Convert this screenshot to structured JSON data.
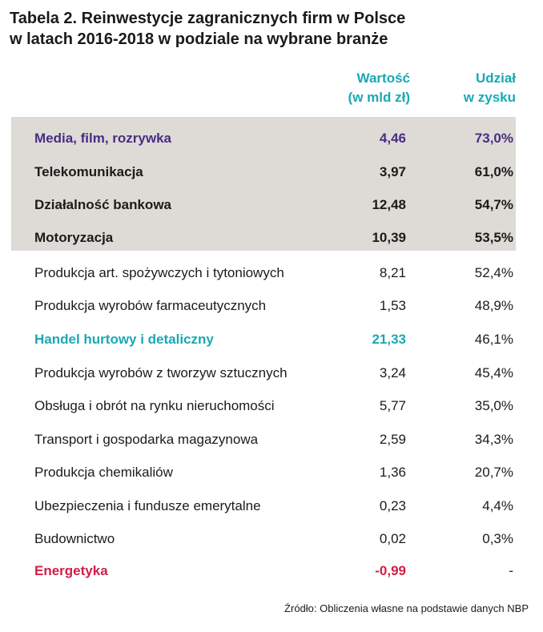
{
  "title": {
    "line1": "Tabela 2. Reinwestycje zagranicznych firm w Polsce",
    "line2": "w latach 2016-2018 w podziale na wybrane branże"
  },
  "columns": {
    "value_line1": "Wartość",
    "value_line2": "(w mld zł)",
    "share_line1": "Udział",
    "share_line2": "w zysku"
  },
  "rows": [
    {
      "label": "Media, film, rozrywka",
      "value": "4,46",
      "share": "73,0%"
    },
    {
      "label": "Telekomunikacja",
      "value": "3,97",
      "share": "61,0%"
    },
    {
      "label": "Działalność bankowa",
      "value": "12,48",
      "share": "54,7%"
    },
    {
      "label": "Motoryzacja",
      "value": "10,39",
      "share": "53,5%"
    },
    {
      "label": "Produkcja art. spożywczych i tytoniowych",
      "value": "8,21",
      "share": "52,4%"
    },
    {
      "label": "Produkcja wyrobów farmaceutycznych",
      "value": "1,53",
      "share": "48,9%"
    },
    {
      "label": "Handel hurtowy i detaliczny",
      "value": "21,33",
      "share": "46,1%"
    },
    {
      "label": "Produkcja wyrobów z tworzyw sztucznych",
      "value": "3,24",
      "share": "45,4%"
    },
    {
      "label": "Obsługa i obrót na rynku nieruchomości",
      "value": "5,77",
      "share": "35,0%"
    },
    {
      "label": "Transport i gospodarka magazynowa",
      "value": "2,59",
      "share": "34,3%"
    },
    {
      "label": "Produkcja chemikaliów",
      "value": "1,36",
      "share": "20,7%"
    },
    {
      "label": "Ubezpieczenia i fundusze emerytalne",
      "value": "0,23",
      "share": "4,4%"
    },
    {
      "label": "Budownictwo",
      "value": "0,02",
      "share": "0,3%"
    },
    {
      "label": "Energetyka",
      "value": "-0,99",
      "share": "-"
    }
  ],
  "source": "Źródło: Obliczenia własne na podstawie danych NBP",
  "colors": {
    "accent_teal": "#1aa8b3",
    "accent_purple": "#4a2c83",
    "accent_red": "#d01f45",
    "highlight_band": "#dedad6"
  }
}
